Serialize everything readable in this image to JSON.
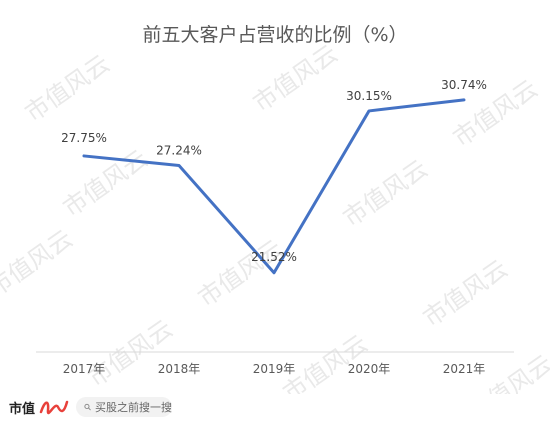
{
  "chart_data": {
    "type": "line",
    "title": "前五大客户占营收的比例（%）",
    "categories": [
      "2017年",
      "2018年",
      "2019年",
      "2020年",
      "2021年"
    ],
    "series": [
      {
        "values": [
          27.75,
          27.24,
          21.52,
          30.15,
          30.74
        ],
        "color": "#4472c4"
      }
    ],
    "data_labels": [
      "27.75%",
      "27.24%",
      "21.52%",
      "30.15%",
      "30.74%"
    ],
    "ylim": [
      15,
      35
    ],
    "grid": false,
    "legend": "none",
    "axis_color": "#d9d9d9"
  },
  "watermark": {
    "text": "市值风云"
  },
  "footer": {
    "brand": "市值",
    "brand_mark_color": "#e8413b",
    "search_icon": "search-icon",
    "search_text": "买股之前搜一搜"
  }
}
